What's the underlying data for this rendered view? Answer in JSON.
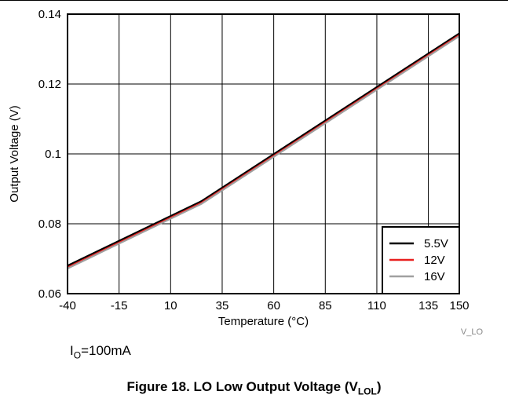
{
  "chart_data": {
    "type": "line",
    "title": "",
    "xlabel": "Temperature (°C)",
    "ylabel": "Output Voltage (V)",
    "xlim": [
      -40,
      150
    ],
    "ylim": [
      0.06,
      0.14
    ],
    "x_ticks": [
      -40,
      -15,
      10,
      35,
      60,
      85,
      110,
      135,
      150
    ],
    "x_tick_labels": [
      "-40",
      "-15",
      "10",
      "35",
      "60",
      "85",
      "110",
      "135",
      "150"
    ],
    "y_ticks": [
      0.06,
      0.08,
      0.1,
      0.12,
      0.14
    ],
    "y_tick_labels": [
      "0.06",
      "0.08",
      "0.1",
      "0.12",
      "0.14"
    ],
    "grid": true,
    "legend_position": "bottom-right",
    "series": [
      {
        "name": "5.5V",
        "color": "#000000",
        "x": [
          -40,
          25,
          150
        ],
        "y": [
          0.068,
          0.0865,
          0.1345
        ]
      },
      {
        "name": "12V",
        "color": "#e8201f",
        "x": [
          -40,
          25,
          150
        ],
        "y": [
          0.0675,
          0.086,
          0.134
        ]
      },
      {
        "name": "16V",
        "color": "#a0a0a0",
        "x": [
          -40,
          25,
          150
        ],
        "y": [
          0.0672,
          0.0857,
          0.1337
        ]
      }
    ],
    "code_label": "V_LO"
  },
  "note": {
    "prefix": "I",
    "subscript": "O",
    "value": "=100mA"
  },
  "caption": {
    "text": "Figure 18. LO Low Output Voltage (V",
    "subscript": "LOL",
    "close": ")"
  }
}
